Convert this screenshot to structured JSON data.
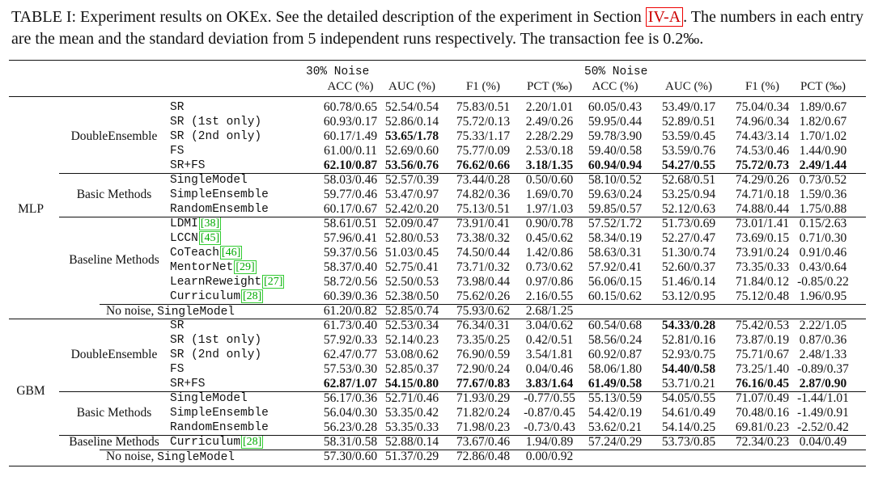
{
  "caption": {
    "prefix": "TABLE I: Experiment results on OKEx. See the detailed description of the experiment in Section ",
    "section_ref": "IV-A",
    "suffix": ". The numbers in each entry are the mean and the standard deviation from 5 independent runs respectively. The transaction fee is 0.2‰."
  },
  "groups": [
    "30% Noise",
    "50% Noise"
  ],
  "columns": [
    "ACC (%)",
    "AUC (%)",
    "F1 (%)",
    "PCT (‰)",
    "ACC (%)",
    "AUC (%)",
    "F1 (%)",
    "PCT (‰)"
  ],
  "rows": [
    {
      "model": "MLP",
      "category": "DoubleEnsemble",
      "method": "SR",
      "cite": "",
      "values": [
        "60.78/0.65",
        "52.54/0.54",
        "75.83/0.51",
        "2.20/1.01",
        "60.05/0.43",
        "53.49/0.17",
        "75.04/0.34",
        "1.89/0.67"
      ],
      "bold": []
    },
    {
      "model": "MLP",
      "category": "DoubleEnsemble",
      "method": "SR (1st only)",
      "cite": "",
      "values": [
        "60.93/0.17",
        "52.86/0.14",
        "75.72/0.13",
        "2.49/0.26",
        "59.95/0.44",
        "52.89/0.51",
        "74.96/0.34",
        "1.82/0.67"
      ],
      "bold": []
    },
    {
      "model": "MLP",
      "category": "DoubleEnsemble",
      "method": "SR (2nd only)",
      "cite": "",
      "values": [
        "60.17/1.49",
        "53.65/1.78",
        "75.33/1.17",
        "2.28/2.29",
        "59.78/3.90",
        "53.59/0.45",
        "74.43/3.14",
        "1.70/1.02"
      ],
      "bold": [
        1
      ]
    },
    {
      "model": "MLP",
      "category": "DoubleEnsemble",
      "method": "FS",
      "cite": "",
      "values": [
        "61.00/0.11",
        "52.69/0.60",
        "75.77/0.09",
        "2.53/0.18",
        "59.40/0.58",
        "53.59/0.76",
        "74.53/0.46",
        "1.44/0.90"
      ],
      "bold": []
    },
    {
      "model": "MLP",
      "category": "DoubleEnsemble",
      "method": "SR+FS",
      "cite": "",
      "values": [
        "62.10/0.87",
        "53.56/0.76",
        "76.62/0.66",
        "3.18/1.35",
        "60.94/0.94",
        "54.27/0.55",
        "75.72/0.73",
        "2.49/1.44"
      ],
      "bold": [
        0,
        1,
        2,
        3,
        4,
        5,
        6,
        7
      ]
    },
    {
      "model": "MLP",
      "category": "Basic Methods",
      "method": "SingleModel",
      "cite": "",
      "values": [
        "58.03/0.46",
        "52.57/0.39",
        "73.44/0.28",
        "0.50/0.60",
        "58.10/0.52",
        "52.68/0.51",
        "74.29/0.26",
        "0.73/0.52"
      ],
      "bold": []
    },
    {
      "model": "MLP",
      "category": "Basic Methods",
      "method": "SimpleEnsemble",
      "cite": "",
      "values": [
        "59.77/0.46",
        "53.47/0.97",
        "74.82/0.36",
        "1.69/0.70",
        "59.63/0.24",
        "53.25/0.94",
        "74.71/0.18",
        "1.59/0.36"
      ],
      "bold": []
    },
    {
      "model": "MLP",
      "category": "Basic Methods",
      "method": "RandomEnsemble",
      "cite": "",
      "values": [
        "60.17/0.67",
        "52.42/0.20",
        "75.13/0.51",
        "1.97/1.03",
        "59.85/0.57",
        "52.12/0.63",
        "74.88/0.44",
        "1.75/0.88"
      ],
      "bold": []
    },
    {
      "model": "MLP",
      "category": "Baseline Methods",
      "method": "LDMI",
      "cite": "[38]",
      "values": [
        "58.61/0.51",
        "52.09/0.47",
        "73.91/0.41",
        "0.90/0.78",
        "57.52/1.72",
        "51.73/0.69",
        "73.01/1.41",
        "0.15/2.63"
      ],
      "bold": []
    },
    {
      "model": "MLP",
      "category": "Baseline Methods",
      "method": "LCCN",
      "cite": "[45]",
      "values": [
        "57.96/0.41",
        "52.80/0.53",
        "73.38/0.32",
        "0.45/0.62",
        "58.34/0.19",
        "52.27/0.47",
        "73.69/0.15",
        "0.71/0.30"
      ],
      "bold": []
    },
    {
      "model": "MLP",
      "category": "Baseline Methods",
      "method": "CoTeach",
      "cite": "[46]",
      "values": [
        "59.37/0.56",
        "51.03/0.45",
        "74.50/0.44",
        "1.42/0.86",
        "58.63/0.31",
        "51.30/0.74",
        "73.91/0.24",
        "0.91/0.46"
      ],
      "bold": []
    },
    {
      "model": "MLP",
      "category": "Baseline Methods",
      "method": "MentorNet",
      "cite": "[29]",
      "values": [
        "58.37/0.40",
        "52.75/0.41",
        "73.71/0.32",
        "0.73/0.62",
        "57.92/0.41",
        "52.60/0.37",
        "73.35/0.33",
        "0.43/0.64"
      ],
      "bold": []
    },
    {
      "model": "MLP",
      "category": "Baseline Methods",
      "method": "LearnReweight",
      "cite": "[27]",
      "values": [
        "58.72/0.56",
        "52.50/0.53",
        "73.98/0.44",
        "0.97/0.86",
        "56.06/0.15",
        "51.46/0.14",
        "71.84/0.12",
        "-0.85/0.22"
      ],
      "bold": []
    },
    {
      "model": "MLP",
      "category": "Baseline Methods",
      "method": "Curriculum",
      "cite": "[28]",
      "values": [
        "60.39/0.36",
        "52.38/0.50",
        "75.62/0.26",
        "2.16/0.55",
        "60.15/0.62",
        "53.12/0.95",
        "75.12/0.48",
        "1.96/0.95"
      ],
      "bold": []
    },
    {
      "model": "MLP",
      "category": "No noise, ",
      "method": "SingleModel",
      "cite": "",
      "values": [
        "61.20/0.82",
        "52.85/0.74",
        "75.93/0.62",
        "2.68/1.25",
        "",
        "",
        "",
        ""
      ],
      "bold": []
    },
    {
      "model": "GBM",
      "category": "DoubleEnsemble",
      "method": "SR",
      "cite": "",
      "values": [
        "61.73/0.40",
        "52.53/0.34",
        "76.34/0.31",
        "3.04/0.62",
        "60.54/0.68",
        "54.33/0.28",
        "75.42/0.53",
        "2.22/1.05"
      ],
      "bold": [
        5
      ]
    },
    {
      "model": "GBM",
      "category": "DoubleEnsemble",
      "method": "SR (1st only)",
      "cite": "",
      "values": [
        "57.92/0.33",
        "52.14/0.23",
        "73.35/0.25",
        "0.42/0.51",
        "58.56/0.24",
        "52.81/0.16",
        "73.87/0.19",
        "0.87/0.36"
      ],
      "bold": []
    },
    {
      "model": "GBM",
      "category": "DoubleEnsemble",
      "method": "SR (2nd only)",
      "cite": "",
      "values": [
        "62.47/0.77",
        "53.08/0.62",
        "76.90/0.59",
        "3.54/1.81",
        "60.92/0.87",
        "52.93/0.75",
        "75.71/0.67",
        "2.48/1.33"
      ],
      "bold": []
    },
    {
      "model": "GBM",
      "category": "DoubleEnsemble",
      "method": "FS",
      "cite": "",
      "values": [
        "57.53/0.30",
        "52.85/0.37",
        "72.90/0.24",
        "0.04/0.46",
        "58.06/1.80",
        "54.40/0.58",
        "73.25/1.40",
        "-0.89/0.37"
      ],
      "bold": [
        5
      ]
    },
    {
      "model": "GBM",
      "category": "DoubleEnsemble",
      "method": "SR+FS",
      "cite": "",
      "values": [
        "62.87/1.07",
        "54.15/0.80",
        "77.67/0.83",
        "3.83/1.64",
        "61.49/0.58",
        "53.71/0.21",
        "76.16/0.45",
        "2.87/0.90"
      ],
      "bold": [
        0,
        1,
        2,
        3,
        4,
        6,
        7
      ]
    },
    {
      "model": "GBM",
      "category": "Basic Methods",
      "method": "SingleModel",
      "cite": "",
      "values": [
        "56.17/0.36",
        "52.71/0.46",
        "71.93/0.29",
        "-0.77/0.55",
        "55.13/0.59",
        "54.05/0.55",
        "71.07/0.49",
        "-1.44/1.01"
      ],
      "bold": []
    },
    {
      "model": "GBM",
      "category": "Basic Methods",
      "method": "SimpleEnsemble",
      "cite": "",
      "values": [
        "56.04/0.30",
        "53.35/0.42",
        "71.82/0.24",
        "-0.87/0.45",
        "54.42/0.19",
        "54.61/0.49",
        "70.48/0.16",
        "-1.49/0.91"
      ],
      "bold": []
    },
    {
      "model": "GBM",
      "category": "Basic Methods",
      "method": "RandomEnsemble",
      "cite": "",
      "values": [
        "56.23/0.28",
        "53.35/0.33",
        "71.98/0.23",
        "-0.73/0.43",
        "53.62/0.21",
        "54.14/0.25",
        "69.81/0.23",
        "-2.52/0.42"
      ],
      "bold": []
    },
    {
      "model": "GBM",
      "category": "Baseline Methods",
      "method": "Curriculum",
      "cite": "[28]",
      "values": [
        "58.31/0.58",
        "52.88/0.14",
        "73.67/0.46",
        "1.94/0.89",
        "57.24/0.29",
        "53.73/0.85",
        "72.34/0.23",
        "0.04/0.49"
      ],
      "bold": []
    },
    {
      "model": "GBM",
      "category": "No noise, ",
      "method": "SingleModel",
      "cite": "",
      "values": [
        "57.30/0.60",
        "51.37/0.29",
        "72.86/0.48",
        "0.00/0.92",
        "",
        "",
        "",
        ""
      ],
      "bold": []
    }
  ]
}
